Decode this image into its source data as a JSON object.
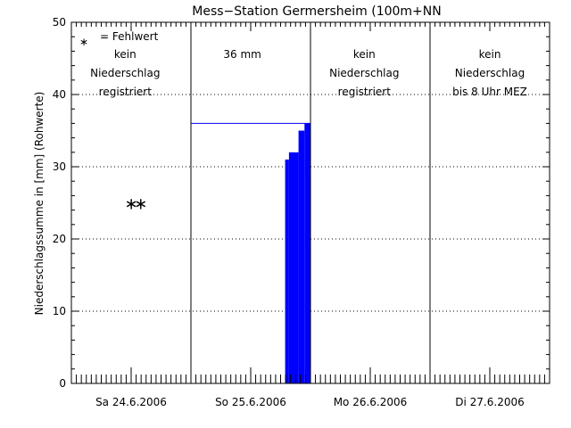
{
  "chart_data": {
    "type": "bar",
    "title": "Mess−Station Germersheim (100m+NN",
    "ylabel": "Niederschlagssumme in [mm] (Rohwerte)",
    "xlabel": "",
    "ylim": [
      0,
      50
    ],
    "yticks": [
      0,
      10,
      20,
      30,
      40,
      50
    ],
    "grid_y": "dotted",
    "days": [
      "Sa 24.6.2006",
      "So 25.6.2006",
      "Mo 26.6.2006",
      "Di 27.6.2006"
    ],
    "legend_symbol": "∗",
    "legend_text": "= Fehlwert",
    "day_notes": [
      [
        "kein",
        "Niederschlag",
        "registriert"
      ],
      [
        "36 mm"
      ],
      [
        "kein",
        "Niederschlag",
        "registriert"
      ],
      [
        "kein",
        "Niederschlag",
        "bis 8 Uhr MEZ"
      ]
    ],
    "day_total_mm": 36,
    "missing_markers": [
      {
        "x_day": 0.5,
        "y": 25
      },
      {
        "x_day": 0.58,
        "y": 25
      }
    ],
    "bar_series": {
      "name": "",
      "color": "#0000ff",
      "points": [
        {
          "x_day": 1.788,
          "y": 31
        },
        {
          "x_day": 1.82,
          "y": 32
        },
        {
          "x_day": 1.9,
          "y": 35
        },
        {
          "x_day": 1.95,
          "y": 36
        }
      ],
      "end_day": 2.0
    }
  }
}
